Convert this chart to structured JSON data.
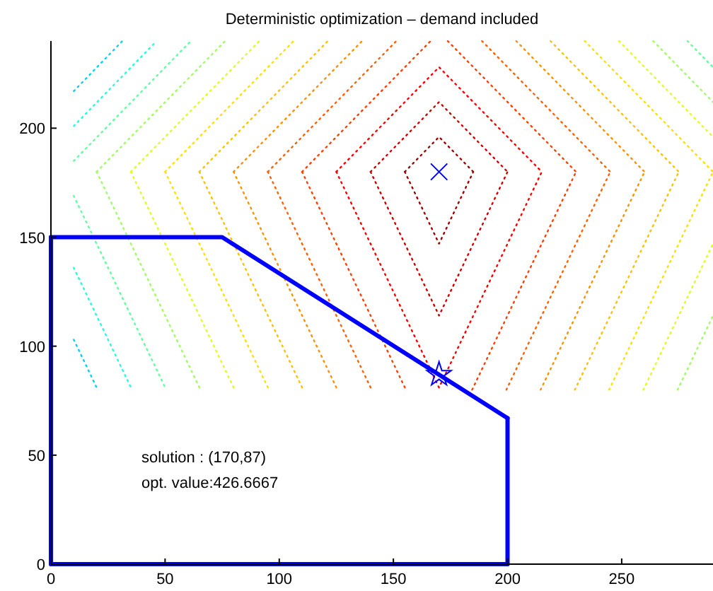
{
  "chart_data": {
    "type": "line",
    "title": "Deterministic optimization – demand included",
    "xlim": [
      0,
      290
    ],
    "ylim": [
      0,
      240
    ],
    "xticks": [
      0,
      50,
      100,
      150,
      200,
      250
    ],
    "yticks": [
      0,
      50,
      100,
      150,
      200
    ],
    "grid": false,
    "marker": "none",
    "annotations": [
      "solution  : (170,87)",
      "opt. value:426.6667"
    ],
    "series": [
      {
        "color": "#a00000",
        "line_style": "dotted",
        "x": [
          155,
          170,
          185
        ],
        "values": [
          180,
          196,
          180
        ]
      },
      {
        "color": "#a00000",
        "line_style": "dotted",
        "x": [
          155,
          170,
          185
        ],
        "values": [
          180,
          147,
          180
        ]
      },
      {
        "color": "#d00000",
        "line_style": "dotted",
        "x": [
          140,
          170,
          200
        ],
        "values": [
          180,
          212,
          180
        ]
      },
      {
        "color": "#d00000",
        "line_style": "dotted",
        "x": [
          140,
          170,
          200
        ],
        "values": [
          180,
          114,
          180
        ]
      },
      {
        "color": "#ff0000",
        "line_style": "dotted",
        "x": [
          125,
          170,
          215
        ],
        "values": [
          180,
          228,
          180
        ]
      },
      {
        "color": "#ff0000",
        "line_style": "dotted",
        "x": [
          125,
          170,
          215
        ],
        "values": [
          180,
          81,
          180
        ]
      },
      {
        "color": "#ff4000",
        "line_style": "dotted",
        "x": [
          110,
          166.3
        ],
        "values": [
          180,
          240
        ]
      },
      {
        "color": "#ff4000",
        "line_style": "dotted",
        "x": [
          110,
          155.5
        ],
        "values": [
          180,
          80
        ]
      },
      {
        "color": "#ff4000",
        "line_style": "dotted",
        "x": [
          173.8,
          230
        ],
        "values": [
          240,
          180
        ]
      },
      {
        "color": "#ff4000",
        "line_style": "dotted",
        "x": [
          184.5,
          230
        ],
        "values": [
          80,
          180
        ]
      },
      {
        "color": "#ff6000",
        "line_style": "dotted",
        "x": [
          95,
          151.3
        ],
        "values": [
          180,
          240
        ]
      },
      {
        "color": "#ff6000",
        "line_style": "dotted",
        "x": [
          95,
          140.5
        ],
        "values": [
          180,
          80
        ]
      },
      {
        "color": "#ff6000",
        "line_style": "dotted",
        "x": [
          188.8,
          245
        ],
        "values": [
          240,
          180
        ]
      },
      {
        "color": "#ff6000",
        "line_style": "dotted",
        "x": [
          199.5,
          245
        ],
        "values": [
          80,
          180
        ]
      },
      {
        "color": "#ff9000",
        "line_style": "dotted",
        "x": [
          80,
          136.3
        ],
        "values": [
          180,
          240
        ]
      },
      {
        "color": "#ff9000",
        "line_style": "dotted",
        "x": [
          80,
          125.5
        ],
        "values": [
          180,
          80
        ]
      },
      {
        "color": "#ff9000",
        "line_style": "dotted",
        "x": [
          203.8,
          260
        ],
        "values": [
          240,
          180
        ]
      },
      {
        "color": "#ff9000",
        "line_style": "dotted",
        "x": [
          214.5,
          260
        ],
        "values": [
          80,
          180
        ]
      },
      {
        "color": "#ffc000",
        "line_style": "dotted",
        "x": [
          65,
          121.3
        ],
        "values": [
          180,
          240
        ]
      },
      {
        "color": "#ffc000",
        "line_style": "dotted",
        "x": [
          65,
          110.5
        ],
        "values": [
          180,
          80
        ]
      },
      {
        "color": "#ffc000",
        "line_style": "dotted",
        "x": [
          218.8,
          275
        ],
        "values": [
          240,
          180
        ]
      },
      {
        "color": "#ffc000",
        "line_style": "dotted",
        "x": [
          229.5,
          275
        ],
        "values": [
          80,
          180
        ]
      },
      {
        "color": "#ffe000",
        "line_style": "dotted",
        "x": [
          50,
          106.3
        ],
        "values": [
          180,
          240
        ]
      },
      {
        "color": "#ffe000",
        "line_style": "dotted",
        "x": [
          50,
          95.5
        ],
        "values": [
          180,
          80
        ]
      },
      {
        "color": "#ffe000",
        "line_style": "dotted",
        "x": [
          233.8,
          290
        ],
        "values": [
          240,
          180
        ]
      },
      {
        "color": "#ffe000",
        "line_style": "dotted",
        "x": [
          244.5,
          290
        ],
        "values": [
          80,
          180
        ]
      },
      {
        "color": "#e0ff20",
        "line_style": "dotted",
        "x": [
          35,
          91.3
        ],
        "values": [
          180,
          240
        ]
      },
      {
        "color": "#e0ff20",
        "line_style": "dotted",
        "x": [
          35,
          80.5
        ],
        "values": [
          180,
          80
        ]
      },
      {
        "color": "#e0ff20",
        "line_style": "dotted",
        "x": [
          248.8,
          290
        ],
        "values": [
          240,
          196
        ]
      },
      {
        "color": "#e0ff20",
        "line_style": "dotted",
        "x": [
          259.5,
          290
        ],
        "values": [
          80,
          147
        ]
      },
      {
        "color": "#a0ff60",
        "line_style": "dotted",
        "x": [
          20,
          76.3
        ],
        "values": [
          180,
          240
        ]
      },
      {
        "color": "#a0ff60",
        "line_style": "dotted",
        "x": [
          20,
          65.5
        ],
        "values": [
          180,
          80
        ]
      },
      {
        "color": "#a0ff60",
        "line_style": "dotted",
        "x": [
          263.8,
          290
        ],
        "values": [
          240,
          212
        ]
      },
      {
        "color": "#a0ff60",
        "line_style": "dotted",
        "x": [
          274.5,
          290
        ],
        "values": [
          80,
          114
        ]
      },
      {
        "color": "#60ffa0",
        "line_style": "dotted",
        "x": [
          10,
          61.3
        ],
        "values": [
          185,
          240
        ]
      },
      {
        "color": "#60ffa0",
        "line_style": "dotted",
        "x": [
          10,
          50.5
        ],
        "values": [
          169,
          80
        ]
      },
      {
        "color": "#60ffa0",
        "line_style": "dotted",
        "x": [
          278.8,
          290
        ],
        "values": [
          240,
          228
        ]
      },
      {
        "color": "#20ffe0",
        "line_style": "dotted",
        "x": [
          10,
          46.3
        ],
        "values": [
          201,
          240
        ]
      },
      {
        "color": "#20ffe0",
        "line_style": "dotted",
        "x": [
          10,
          35.5
        ],
        "values": [
          136,
          80
        ]
      },
      {
        "color": "#00d0ff",
        "line_style": "dotted",
        "x": [
          10,
          31.3
        ],
        "values": [
          217,
          240
        ]
      },
      {
        "color": "#00d0ff",
        "line_style": "dotted",
        "x": [
          10,
          20.5
        ],
        "values": [
          103,
          80
        ]
      },
      {
        "color": "#0000ff",
        "line_style": "solid",
        "x": [
          0,
          75,
          200
        ],
        "values": [
          150,
          150,
          67
        ]
      },
      {
        "color": "#0000ff",
        "line_style": "solid",
        "x": [
          0,
          0
        ],
        "values": [
          0,
          150
        ]
      },
      {
        "color": "#0000ff",
        "line_style": "solid",
        "x": [
          200,
          200
        ],
        "values": [
          67,
          0
        ]
      },
      {
        "color": "#0000ff",
        "line_style": "solid",
        "x": [
          0,
          200
        ],
        "values": [
          0,
          0
        ]
      },
      {
        "type": "scatter",
        "marker": "cross",
        "color": "#0000ff",
        "x": [
          170
        ],
        "values": [
          180
        ]
      },
      {
        "type": "scatter",
        "marker": "star",
        "color": "#0000ff",
        "x": [
          170
        ],
        "values": [
          87
        ]
      }
    ]
  }
}
